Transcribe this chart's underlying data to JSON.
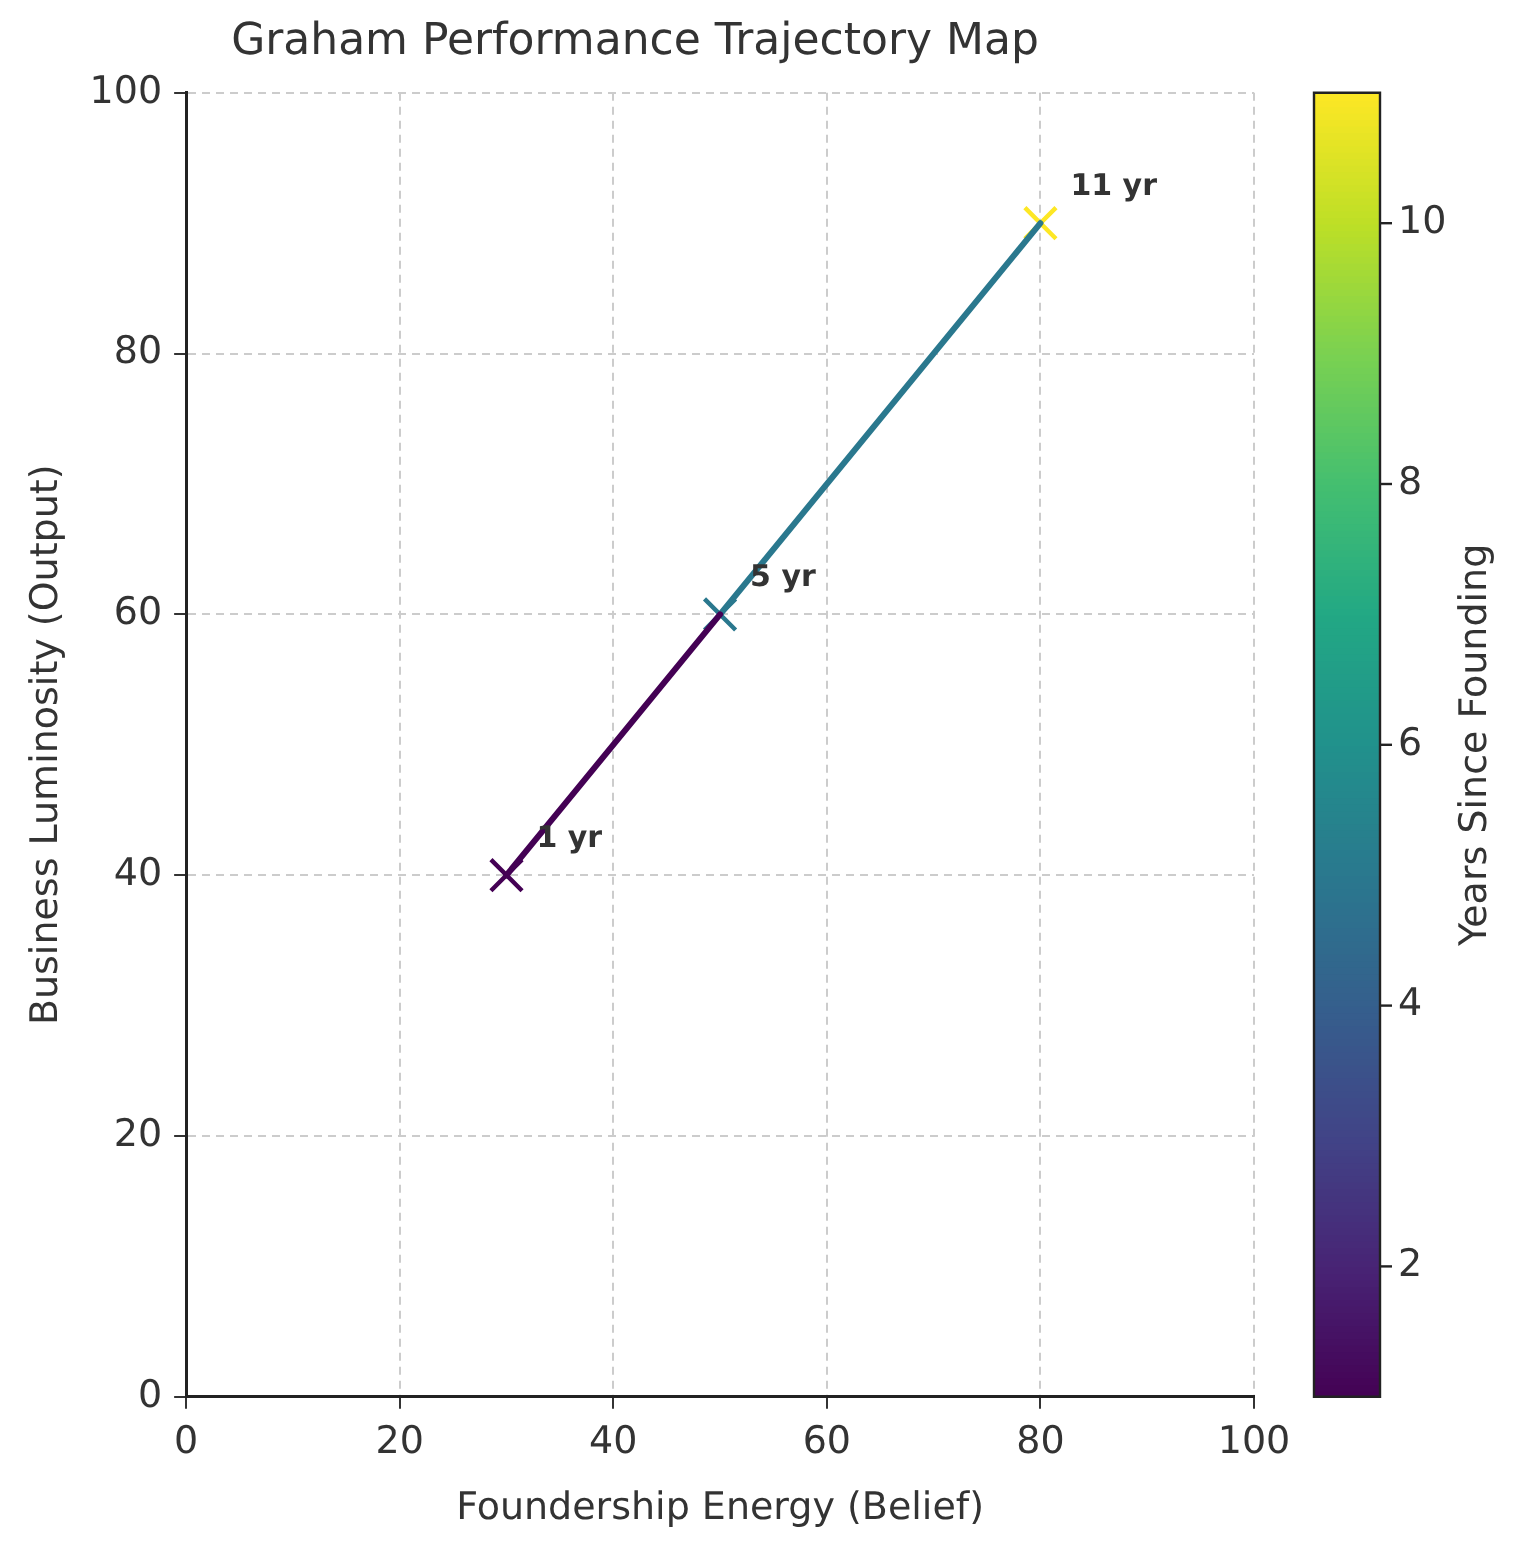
{
  "chart_data": {
    "type": "scatter",
    "title": "Graham Performance Trajectory Map",
    "xlabel": "Foundership Energy (Belief)",
    "ylabel": "Business Luminosity (Output)",
    "clabel": "Years Since Founding",
    "xlim": [
      0,
      100
    ],
    "xticks": [
      0,
      20,
      40,
      60,
      80,
      100
    ],
    "ylim": [
      0,
      100
    ],
    "yticks": [
      0,
      20,
      40,
      60,
      80,
      100
    ],
    "clim": [
      1,
      11
    ],
    "cticks": [
      2,
      4,
      6,
      8,
      10
    ],
    "grid": true,
    "legend": false,
    "series": [
      {
        "type": "line",
        "x": [
          30,
          50
        ],
        "values": [
          40,
          60
        ],
        "color": "#440154",
        "line_style": "solid",
        "marker": "none"
      },
      {
        "type": "line",
        "x": [
          50,
          80
        ],
        "values": [
          60,
          90
        ],
        "color": "#2a788e",
        "line_style": "solid",
        "marker": "none"
      },
      {
        "x": [
          30,
          50,
          80
        ],
        "values": [
          40,
          60,
          90
        ],
        "colors": [
          "#440154",
          "#2a788e",
          "#fde725"
        ],
        "marker": "cross"
      }
    ],
    "annotations": [
      {
        "text": "1 yr",
        "x": 30,
        "y": 40
      },
      {
        "text": "5 yr",
        "x": 50,
        "y": 60
      },
      {
        "text": "11 yr",
        "x": 80,
        "y": 90
      }
    ]
  }
}
